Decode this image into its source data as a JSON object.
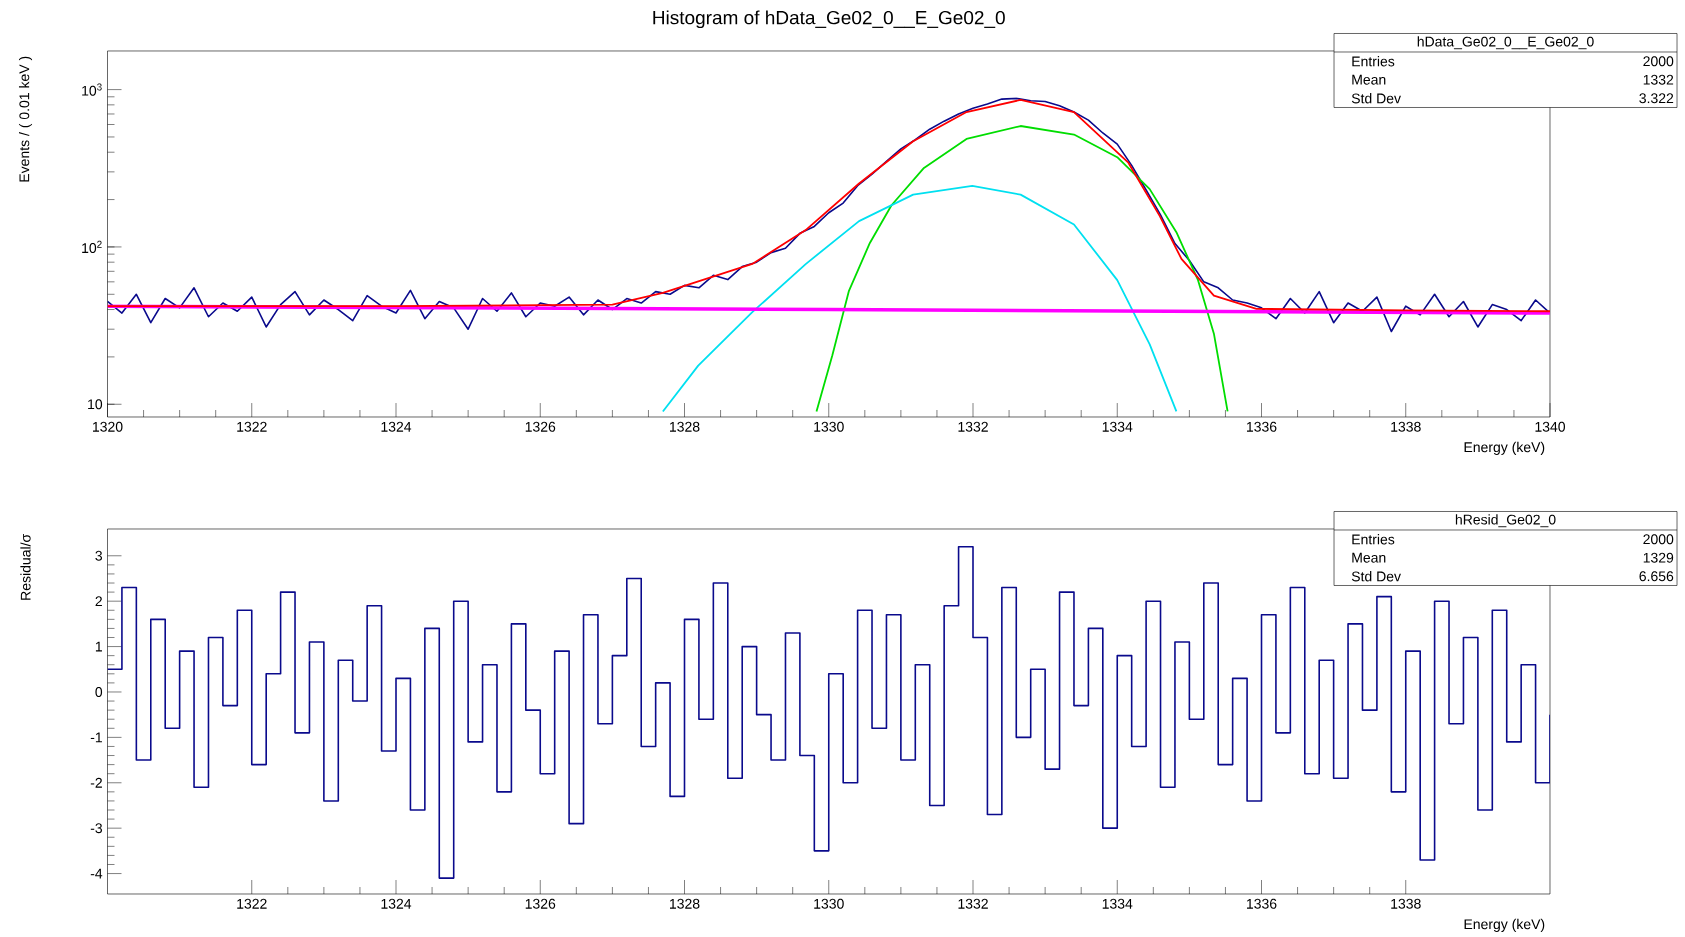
{
  "chart_data": [
    {
      "type": "line",
      "title": "Histogram of hData_Ge02_0__E_Ge02_0",
      "xlabel": "Energy (keV)",
      "ylabel": "Events / ( 0.01 keV )",
      "log": true,
      "xlim": [
        1320,
        1340
      ],
      "xticks": [
        1320,
        1322,
        1324,
        1326,
        1328,
        1330,
        1332,
        1334,
        1336,
        1338,
        1340
      ],
      "ylim": [
        8.3,
        1760
      ],
      "yticks": [
        10,
        {
          "value": 100,
          "label": "10$^{2}$"
        },
        {
          "value": 1000,
          "label": "10$^{3}$"
        }
      ],
      "annotations": [
        "hData_Ge02_0__E_Ge02_0",
        "Entries",
        "2000",
        "Mean",
        "1332",
        "Std Dev",
        "3.322"
      ],
      "series": [
        {
          "color": "#0a0a8c",
          "x": [
            1320.0,
            1320.2,
            1320.4,
            1320.6,
            1320.8,
            1321.0,
            1321.2,
            1321.4,
            1321.6,
            1321.8,
            1322.0,
            1322.2,
            1322.4,
            1322.6,
            1322.8,
            1323.0,
            1323.2,
            1323.4,
            1323.6,
            1323.8,
            1324.0,
            1324.2,
            1324.4,
            1324.6,
            1324.8,
            1325.0,
            1325.2,
            1325.4,
            1325.6,
            1325.8,
            1326.0,
            1326.2,
            1326.4,
            1326.6,
            1326.8,
            1327.0,
            1327.2,
            1327.4,
            1327.6,
            1327.8,
            1328.0,
            1328.2,
            1328.4,
            1328.6,
            1328.8,
            1329.0,
            1329.2,
            1329.4,
            1329.6,
            1329.8,
            1330.0,
            1330.2,
            1330.4,
            1330.6,
            1330.8,
            1331.0,
            1331.2,
            1331.4,
            1331.6,
            1331.8,
            1332.0,
            1332.2,
            1332.4,
            1332.6,
            1332.8,
            1333.0,
            1333.2,
            1333.4,
            1333.6,
            1333.8,
            1334.0,
            1334.2,
            1334.4,
            1334.6,
            1334.8,
            1335.0,
            1335.2,
            1335.4,
            1335.6,
            1335.8,
            1336.0,
            1336.2,
            1336.4,
            1336.6,
            1336.8,
            1337.0,
            1337.2,
            1337.4,
            1337.6,
            1337.8,
            1338.0,
            1338.2,
            1338.4,
            1338.6,
            1338.8,
            1339.0,
            1339.2,
            1339.4,
            1339.6,
            1339.8,
            1340.0
          ],
          "values": [
            45,
            38,
            50,
            33,
            47,
            41,
            55,
            36,
            44,
            39,
            48,
            31,
            43,
            52,
            37,
            46,
            40,
            34,
            49,
            42,
            38,
            53,
            35,
            45,
            41,
            30,
            47,
            39,
            51,
            36,
            44,
            42,
            48,
            37,
            46,
            40,
            47,
            44,
            52,
            50,
            57,
            55,
            66,
            62,
            75,
            80,
            92,
            98,
            122,
            135,
            165,
            190,
            245,
            290,
            350,
            420,
            480,
            560,
            630,
            700,
            760,
            810,
            870,
            880,
            850,
            840,
            790,
            720,
            640,
            530,
            450,
            330,
            230,
            160,
            105,
            82,
            60,
            55,
            46,
            44,
            41,
            35,
            47,
            38,
            52,
            33,
            44,
            39,
            48,
            29,
            42,
            37,
            50,
            36,
            45,
            31,
            43,
            40,
            34,
            46,
            38
          ]
        },
        {
          "color": "#00dd00",
          "x": [
            1329.83,
            1330.05,
            1330.28,
            1330.57,
            1330.87,
            1331.32,
            1331.91,
            1332.66,
            1333.4,
            1334.0,
            1334.45,
            1334.82,
            1335.12,
            1335.34,
            1335.53
          ],
          "values": [
            9,
            20.5,
            52.6,
            106,
            184,
            318,
            486,
            587,
            518,
            372,
            233,
            124,
            61.5,
            28.1,
            9
          ]
        },
        {
          "color": "#00e0f0",
          "x": [
            1327.7,
            1328.19,
            1328.94,
            1329.68,
            1330.42,
            1331.17,
            1331.99,
            1332.66,
            1333.4,
            1334.0,
            1334.45,
            1334.82
          ],
          "values": [
            9,
            17.6,
            38.5,
            77.8,
            146,
            215,
            244,
            215,
            139,
            61.5,
            24,
            9
          ]
        },
        {
          "color": "#ff00ff",
          "x": [
            1320,
            1330,
            1340
          ],
          "values": [
            42,
            40,
            38
          ]
        },
        {
          "color": "#ff0000",
          "x": [
            1320,
            1324,
            1327,
            1327.7,
            1328.94,
            1329.68,
            1330.42,
            1331.17,
            1331.91,
            1332.66,
            1333.4,
            1334.15,
            1334.59,
            1334.89,
            1335.34,
            1335.93,
            1338,
            1340
          ],
          "values": [
            42,
            42,
            43,
            51,
            78,
            128,
            253,
            470,
            720,
            860,
            720,
            345,
            157,
            84,
            49,
            40.4,
            39.5,
            39
          ]
        }
      ]
    },
    {
      "type": "step",
      "xlabel": "Energy (keV)",
      "ylabel": "Residual/σ",
      "xlim": [
        1320,
        1340
      ],
      "xticks": [
        1322,
        1324,
        1326,
        1328,
        1330,
        1332,
        1334,
        1336,
        1338
      ],
      "ylim": [
        -4.45,
        3.59
      ],
      "yticks": [
        -4,
        -3,
        -2,
        -1,
        0,
        1,
        2,
        3
      ],
      "annotations": [
        "hResid_Ge02_0",
        "Entries",
        "2000",
        "Mean",
        "1329",
        "Std Dev",
        "6.656"
      ],
      "series": [
        {
          "color": "#0a0a8c",
          "x": [
            1320.0,
            1320.2,
            1320.4,
            1320.6,
            1320.8,
            1321.0,
            1321.2,
            1321.4,
            1321.6,
            1321.8,
            1322.0,
            1322.2,
            1322.4,
            1322.6,
            1322.8,
            1323.0,
            1323.2,
            1323.4,
            1323.6,
            1323.8,
            1324.0,
            1324.2,
            1324.4,
            1324.6,
            1324.8,
            1325.0,
            1325.2,
            1325.4,
            1325.6,
            1325.8,
            1326.0,
            1326.2,
            1326.4,
            1326.6,
            1326.8,
            1327.0,
            1327.2,
            1327.4,
            1327.6,
            1327.8,
            1328.0,
            1328.2,
            1328.4,
            1328.6,
            1328.8,
            1329.0,
            1329.2,
            1329.4,
            1329.6,
            1329.8,
            1330.0,
            1330.2,
            1330.4,
            1330.6,
            1330.8,
            1331.0,
            1331.2,
            1331.4,
            1331.6,
            1331.8,
            1332.0,
            1332.2,
            1332.4,
            1332.6,
            1332.8,
            1333.0,
            1333.2,
            1333.4,
            1333.6,
            1333.8,
            1334.0,
            1334.2,
            1334.4,
            1334.6,
            1334.8,
            1335.0,
            1335.2,
            1335.4,
            1335.6,
            1335.8,
            1336.0,
            1336.2,
            1336.4,
            1336.6,
            1336.8,
            1337.0,
            1337.2,
            1337.4,
            1337.6,
            1337.8,
            1338.0,
            1338.2,
            1338.4,
            1338.6,
            1338.8,
            1339.0,
            1339.2,
            1339.4,
            1339.6,
            1339.8,
            1340.0
          ],
          "values": [
            0.5,
            2.3,
            -1.5,
            1.6,
            -0.8,
            0.9,
            -2.1,
            1.2,
            -0.3,
            1.8,
            -1.6,
            0.4,
            2.2,
            -0.9,
            1.1,
            -2.4,
            0.7,
            -0.2,
            1.9,
            -1.3,
            0.3,
            -2.6,
            1.4,
            -4.1,
            2.0,
            -1.1,
            0.6,
            -2.2,
            1.5,
            -0.4,
            -1.8,
            0.9,
            -2.9,
            1.7,
            -0.7,
            0.8,
            2.5,
            -1.2,
            0.2,
            -2.3,
            1.6,
            -0.6,
            2.4,
            -1.9,
            1.0,
            -0.5,
            -1.5,
            1.3,
            -1.4,
            -3.5,
            0.4,
            -2.0,
            1.8,
            -0.8,
            1.7,
            -1.5,
            0.6,
            -2.5,
            1.9,
            3.2,
            1.2,
            -2.7,
            2.3,
            -1.0,
            0.5,
            -1.7,
            2.2,
            -0.3,
            1.4,
            -3.0,
            0.8,
            -1.2,
            2.0,
            -2.1,
            1.1,
            -0.6,
            2.4,
            -1.6,
            0.3,
            -2.4,
            1.7,
            -0.9,
            2.3,
            -1.8,
            0.7,
            -1.9,
            1.5,
            -0.4,
            2.1,
            -2.2,
            0.9,
            -3.7,
            2.0,
            -0.7,
            1.2,
            -2.6,
            1.8,
            -1.1,
            0.6,
            -2.0,
            -0.5
          ]
        }
      ]
    }
  ]
}
